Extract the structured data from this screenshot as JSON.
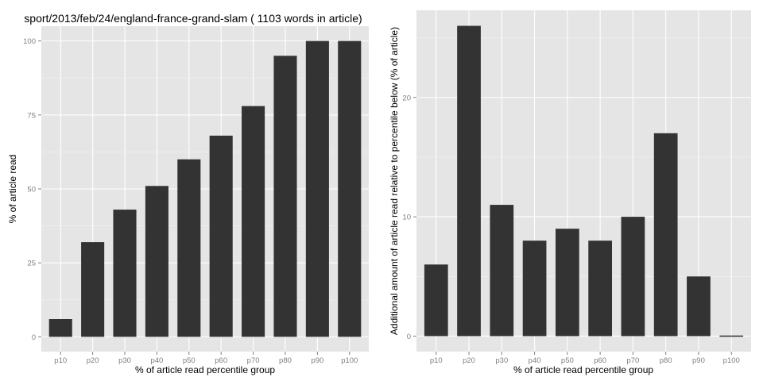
{
  "chart_data": [
    {
      "type": "bar",
      "title": "sport/2013/feb/24/england-france-grand-slam ( 1103 words in article)",
      "xlabel": "% of article read percentile group",
      "ylabel": "% of article read",
      "categories": [
        "p10",
        "p20",
        "p30",
        "p40",
        "p50",
        "p60",
        "p70",
        "p80",
        "p90",
        "p100"
      ],
      "values": [
        6,
        32,
        43,
        51,
        60,
        68,
        78,
        95,
        100,
        100
      ],
      "yticks": [
        0,
        25,
        50,
        75,
        100
      ],
      "ylim": [
        -5,
        105
      ],
      "grid": true,
      "bar_color": "#333333",
      "panel_color": "#e5e5e5"
    },
    {
      "type": "bar",
      "title": "",
      "xlabel": "% of article read percentile group",
      "ylabel": "Additional amount of article read relative to percentile below (% of article)",
      "categories": [
        "p10",
        "p20",
        "p30",
        "p40",
        "p50",
        "p60",
        "p70",
        "p80",
        "p90",
        "p100"
      ],
      "values": [
        6,
        26,
        11,
        8,
        9,
        8,
        10,
        17,
        5,
        0
      ],
      "yticks": [
        0,
        10,
        20
      ],
      "ylim": [
        -1.3,
        27.3
      ],
      "grid": true,
      "bar_color": "#333333",
      "panel_color": "#e5e5e5"
    }
  ]
}
